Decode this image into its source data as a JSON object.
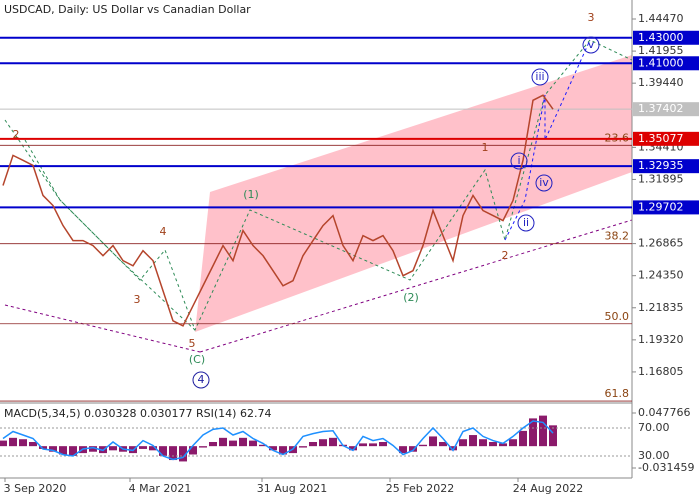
{
  "chart_data": {
    "type": "line",
    "title": "USDCAD, Daily:  US Dollar vs Canadian Dollar",
    "ylim": [
      1.1437,
      1.4596
    ],
    "yticks": [
      {
        "value": 1.4447,
        "label": "1.44470"
      },
      {
        "value": 1.41955,
        "label": "1.41955"
      },
      {
        "value": 1.3944,
        "label": "1.39440"
      },
      {
        "value": 1.3441,
        "label": "1.34410"
      },
      {
        "value": 1.31895,
        "label": "1.31895"
      },
      {
        "value": 1.26865,
        "label": "1.26865"
      },
      {
        "value": 1.2435,
        "label": "1.24350"
      },
      {
        "value": 1.21835,
        "label": "1.21835"
      },
      {
        "value": 1.1932,
        "label": "1.19320"
      },
      {
        "value": 1.16805,
        "label": "1.16805"
      }
    ],
    "x_labels": [
      "3 Sep 2020",
      "4 Mar 2021",
      "31 Aug 2021",
      "25 Feb 2022",
      "24 Aug 2022"
    ],
    "price": {
      "color": "#b5452c",
      "values": [
        1.3142,
        1.3378,
        1.3339,
        1.3299,
        1.3064,
        1.2985,
        1.2828,
        1.271,
        1.271,
        1.2671,
        1.2592,
        1.2671,
        1.2553,
        1.2513,
        1.2631,
        1.2553,
        1.2317,
        1.2081,
        1.2042,
        1.2199,
        1.2356,
        1.2513,
        1.2671,
        1.2553,
        1.2789,
        1.2671,
        1.2592,
        1.2474,
        1.2356,
        1.2396,
        1.2592,
        1.271,
        1.2828,
        1.2906,
        1.2671,
        1.2553,
        1.2749,
        1.271,
        1.2749,
        1.2631,
        1.2435,
        1.2474,
        1.2671,
        1.2946,
        1.2749,
        1.2553,
        1.2906,
        1.3064,
        1.2946,
        1.2906,
        1.2867,
        1.3024,
        1.3339,
        1.381,
        1.385,
        1.374
      ]
    },
    "levels": [
      {
        "value": 1.43,
        "label": "1.43000",
        "color": "#0000cc"
      },
      {
        "value": 1.41,
        "label": "1.41000",
        "color": "#0000cc"
      },
      {
        "value": 1.37402,
        "label": "1.37402",
        "color": "#c0c0c0"
      },
      {
        "value": 1.35077,
        "label": "1.35077",
        "color": "#dd0000"
      },
      {
        "value": 1.32935,
        "label": "1.32935",
        "color": "#0000cc"
      },
      {
        "value": 1.29702,
        "label": "1.29702",
        "color": "#0000cc"
      }
    ],
    "fib_levels": [
      {
        "value": 1.3457,
        "label": "23.6"
      },
      {
        "value": 1.2686,
        "label": "38.2"
      },
      {
        "value": 1.2058,
        "label": "50.0"
      },
      {
        "value": 1.1452,
        "label": "61.8"
      }
    ],
    "wave_labels": [
      "2",
      "4",
      "3",
      "5",
      "(C)",
      "4",
      "(1)",
      "(2)",
      "1",
      "2",
      "i",
      "ii",
      "iii",
      "iv",
      "v",
      "3"
    ],
    "indicator": {
      "title": "MACD(5,34,5) 0.030328 0.030177 RSI(14) 62.74",
      "macd_ylim": [
        -0.031459,
        0.047766
      ],
      "macd_ticks": [
        0.047766,
        -0.031459
      ],
      "macd_color": "#8b1a6b",
      "macd": [
        0.008,
        0.012,
        0.01,
        0.006,
        -0.004,
        -0.008,
        -0.012,
        -0.014,
        -0.01,
        -0.008,
        -0.01,
        -0.006,
        -0.008,
        -0.01,
        -0.004,
        -0.006,
        -0.014,
        -0.02,
        -0.022,
        -0.012,
        -0.002,
        0.006,
        0.012,
        0.008,
        0.012,
        0.008,
        0.002,
        -0.006,
        -0.012,
        -0.01,
        -0.002,
        0.006,
        0.01,
        0.012,
        0.002,
        -0.006,
        0.004,
        0.004,
        0.006,
        0.0,
        -0.01,
        -0.008,
        0.002,
        0.014,
        0.006,
        -0.006,
        0.01,
        0.016,
        0.01,
        0.006,
        0.004,
        0.01,
        0.022,
        0.04,
        0.044,
        0.03
      ],
      "rsi_ylim": [
        0,
        100
      ],
      "rsi_ticks": [
        {
          "value": 70,
          "label": "70.00"
        },
        {
          "value": 30,
          "label": "30.00"
        }
      ],
      "rsi_color": "#1e90ff",
      "rsi": [
        55,
        65,
        60,
        55,
        40,
        38,
        32,
        30,
        40,
        42,
        38,
        50,
        40,
        38,
        52,
        45,
        30,
        25,
        28,
        45,
        60,
        68,
        70,
        60,
        65,
        55,
        48,
        38,
        32,
        40,
        58,
        62,
        65,
        66,
        45,
        38,
        58,
        52,
        55,
        45,
        32,
        38,
        55,
        70,
        55,
        38,
        65,
        70,
        58,
        52,
        48,
        58,
        70,
        80,
        78,
        62.74
      ]
    }
  }
}
